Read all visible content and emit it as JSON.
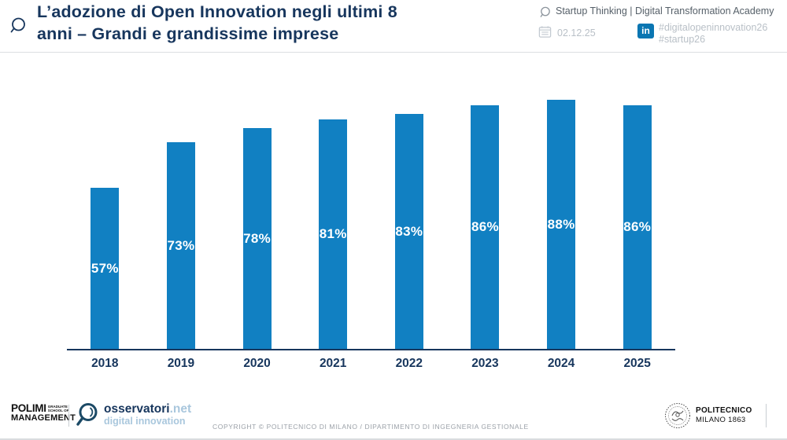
{
  "header": {
    "title_line1": "L’adozione di Open Innovation negli ultimi 8",
    "title_line2": "anni – Grandi e grandissime imprese",
    "event": "Startup Thinking | Digital Transformation Academy",
    "date": "02.12.25",
    "linkedin_label": "in",
    "hashtag1": "#digitalopeninnovation26",
    "hashtag2": "#startup26"
  },
  "chart_data": {
    "type": "bar",
    "categories": [
      "2018",
      "2019",
      "2020",
      "2021",
      "2022",
      "2023",
      "2024",
      "2025"
    ],
    "values": [
      57,
      73,
      78,
      81,
      83,
      86,
      88,
      86
    ],
    "labels": [
      "57%",
      "73%",
      "78%",
      "81%",
      "83%",
      "86%",
      "88%",
      "86%"
    ],
    "title": "",
    "xlabel": "",
    "ylabel": "",
    "ylim": [
      0,
      100
    ],
    "grid": false,
    "legend": false,
    "value_label_position": "inside-center",
    "bar_color": "#1180c2",
    "value_label_color": "#ffffff",
    "axis_color": "#17365d"
  },
  "footer": {
    "polimi_big": "POLIMI",
    "polimi_small1": "GRADUATE",
    "polimi_small2": "SCHOOL OF",
    "polimi_row2": "MANAGEMENT",
    "osservatori_name": "osservatori",
    "osservatori_net": ".net",
    "osservatori_sub": "digital innovation",
    "copyright": "COPYRIGHT © POLITECNICO DI MILANO / DIPARTIMENTO DI INGEGNERIA GESTIONALE",
    "politecnico_line1": "POLITECNICO",
    "politecnico_line2": "MILANO 1863"
  },
  "icons": {
    "magnifier-logo": "magnifying-glass outline",
    "speech-bubble": "magnifier-bubble outline gray",
    "calendar": "calendar grid outline",
    "linkedin": "linkedin 'in' badge",
    "seal": "politecnico circular seal"
  },
  "colors": {
    "title_navy": "#17365d",
    "bar_blue": "#1180c2",
    "linkedin_blue": "#0a76b2",
    "muted_gray": "#b9c0c7",
    "event_gray": "#566069",
    "osservatori_lightblue": "#a9c7dd"
  }
}
